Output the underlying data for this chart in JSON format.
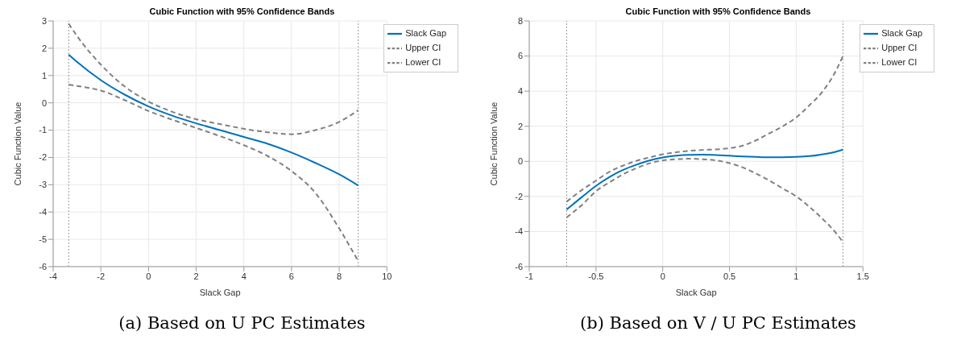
{
  "chart_data": [
    {
      "type": "line",
      "title": "Cubic Function with 95% Confidence Bands",
      "xlabel": "Slack Gap",
      "ylabel": "Cubic Function Value",
      "x": [
        -3.35,
        -3,
        -2,
        -1,
        0,
        1,
        2,
        3,
        4,
        5,
        6,
        7,
        8,
        8.8
      ],
      "series": [
        {
          "name": "Slack Gap",
          "color": "#0072bd",
          "line_style": "solid",
          "values": [
            1.77,
            1.5,
            0.83,
            0.3,
            -0.13,
            -0.47,
            -0.75,
            -1.0,
            -1.25,
            -1.5,
            -1.82,
            -2.2,
            -2.62,
            -3.03
          ]
        },
        {
          "name": "Upper CI",
          "color": "#808080",
          "line_style": "dashed",
          "values": [
            2.9,
            2.45,
            1.4,
            0.6,
            0.05,
            -0.33,
            -0.6,
            -0.78,
            -0.95,
            -1.08,
            -1.15,
            -1.0,
            -0.7,
            -0.27
          ]
        },
        {
          "name": "Lower CI",
          "color": "#808080",
          "line_style": "dashed",
          "values": [
            0.67,
            0.62,
            0.45,
            0.1,
            -0.3,
            -0.62,
            -0.92,
            -1.22,
            -1.55,
            -1.95,
            -2.5,
            -3.3,
            -4.6,
            -5.8
          ]
        }
      ],
      "xlim": [
        -4,
        10
      ],
      "xticks": [
        -4,
        -2,
        0,
        2,
        4,
        6,
        8,
        10
      ],
      "ylim": [
        -6,
        3
      ],
      "yticks": [
        -6,
        -5,
        -4,
        -3,
        -2,
        -1,
        0,
        1,
        2,
        3
      ],
      "ref_lines": [
        {
          "axis": "x",
          "value": -3.35,
          "color": "#999999",
          "line_style": "dotted"
        },
        {
          "axis": "x",
          "value": 8.8,
          "color": "#999999",
          "line_style": "dotted"
        }
      ],
      "grid": true,
      "legend": "top right",
      "annotations": [
        "(a) Based on U PC Estimates"
      ]
    },
    {
      "type": "line",
      "title": "Cubic Function with 95% Confidence Bands",
      "xlabel": "Slack Gap",
      "ylabel": "Cubic Function Value",
      "x": [
        -0.72,
        -0.6,
        -0.5,
        -0.4,
        -0.3,
        -0.2,
        -0.1,
        0,
        0.1,
        0.2,
        0.3,
        0.4,
        0.5,
        0.6,
        0.7,
        0.8,
        0.9,
        1.0,
        1.1,
        1.2,
        1.3,
        1.35
      ],
      "series": [
        {
          "name": "Slack Gap",
          "color": "#0072bd",
          "line_style": "solid",
          "values": [
            -2.75,
            -2.0,
            -1.4,
            -0.9,
            -0.5,
            -0.2,
            0.05,
            0.22,
            0.32,
            0.37,
            0.38,
            0.36,
            0.32,
            0.28,
            0.25,
            0.23,
            0.23,
            0.25,
            0.3,
            0.4,
            0.55,
            0.67
          ]
        },
        {
          "name": "Upper CI",
          "color": "#808080",
          "line_style": "dashed",
          "values": [
            -2.3,
            -1.6,
            -1.1,
            -0.6,
            -0.25,
            0.02,
            0.22,
            0.4,
            0.52,
            0.6,
            0.65,
            0.68,
            0.75,
            0.9,
            1.2,
            1.6,
            2.0,
            2.5,
            3.2,
            4.0,
            5.2,
            6.0
          ]
        },
        {
          "name": "Lower CI",
          "color": "#808080",
          "line_style": "dashed",
          "values": [
            -3.2,
            -2.45,
            -1.7,
            -1.2,
            -0.75,
            -0.4,
            -0.12,
            0.05,
            0.12,
            0.15,
            0.12,
            0.05,
            -0.1,
            -0.35,
            -0.7,
            -1.1,
            -1.55,
            -2.0,
            -2.6,
            -3.3,
            -4.1,
            -4.6
          ]
        }
      ],
      "xlim": [
        -1,
        1.5
      ],
      "xticks": [
        -1,
        -0.5,
        0,
        0.5,
        1,
        1.5
      ],
      "ylim": [
        -6,
        8
      ],
      "yticks": [
        -6,
        -4,
        -2,
        0,
        2,
        4,
        6,
        8
      ],
      "ref_lines": [
        {
          "axis": "x",
          "value": -0.72,
          "color": "#999999",
          "line_style": "dotted"
        },
        {
          "axis": "x",
          "value": 1.35,
          "color": "#999999",
          "line_style": "dotted"
        }
      ],
      "grid": true,
      "legend": "top right",
      "annotations": [
        "(b) Based on V / U PC Estimates"
      ]
    }
  ]
}
